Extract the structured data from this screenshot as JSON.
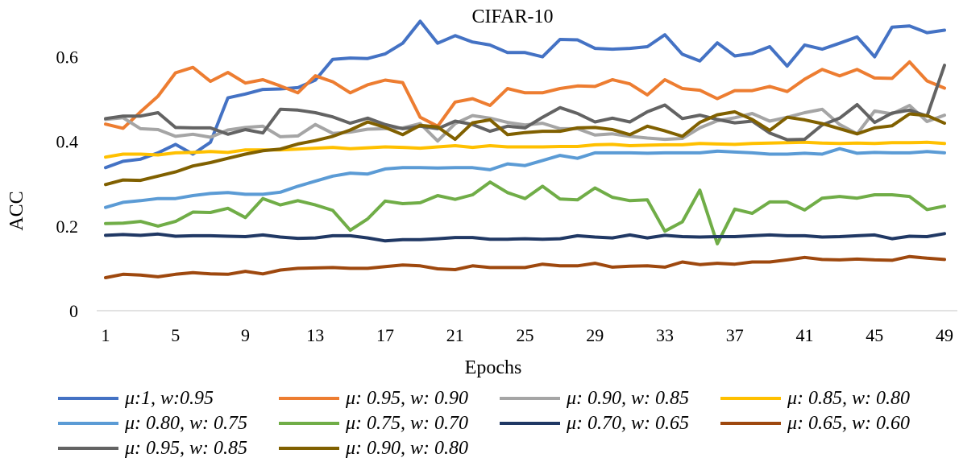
{
  "chart_data": {
    "type": "line",
    "title": "CIFAR-10",
    "xlabel": "Epochs",
    "ylabel": "ACC",
    "ylim": [
      0,
      0.7
    ],
    "yticks": [
      0,
      0.2,
      0.4,
      0.6
    ],
    "ytick_labels": [
      "0",
      "0.2",
      "0.4",
      "0.6"
    ],
    "xlim": [
      1,
      49
    ],
    "xticks": [
      1,
      5,
      9,
      13,
      17,
      21,
      25,
      29,
      33,
      37,
      41,
      45,
      49
    ],
    "xtick_labels": [
      "1",
      "5",
      "9",
      "13",
      "17",
      "21",
      "25",
      "29",
      "33",
      "37",
      "41",
      "45",
      "49"
    ],
    "legend_position": "bottom",
    "series": [
      {
        "name": "μ:1, w:0.95",
        "color": "#4472C4",
        "values": [
          0.338,
          0.353,
          0.358,
          0.373,
          0.393,
          0.37,
          0.398,
          0.503,
          0.512,
          0.523,
          0.524,
          0.527,
          0.545,
          0.594,
          0.597,
          0.596,
          0.607,
          0.632,
          0.684,
          0.632,
          0.65,
          0.635,
          0.628,
          0.61,
          0.61,
          0.6,
          0.641,
          0.64,
          0.62,
          0.618,
          0.62,
          0.624,
          0.652,
          0.606,
          0.59,
          0.633,
          0.602,
          0.608,
          0.624,
          0.578,
          0.628,
          0.618,
          0.632,
          0.647,
          0.6,
          0.67,
          0.673,
          0.657,
          0.663
        ]
      },
      {
        "name": "μ: 0.95, w: 0.90",
        "color": "#ED7D31",
        "values": [
          0.441,
          0.431,
          0.47,
          0.507,
          0.562,
          0.575,
          0.542,
          0.563,
          0.538,
          0.546,
          0.531,
          0.515,
          0.555,
          0.541,
          0.515,
          0.534,
          0.545,
          0.539,
          0.457,
          0.436,
          0.493,
          0.501,
          0.485,
          0.525,
          0.515,
          0.515,
          0.525,
          0.531,
          0.53,
          0.546,
          0.536,
          0.51,
          0.546,
          0.525,
          0.521,
          0.501,
          0.52,
          0.52,
          0.53,
          0.518,
          0.547,
          0.57,
          0.555,
          0.57,
          0.55,
          0.549,
          0.588,
          0.543,
          0.526
        ]
      },
      {
        "name": "μ: 0.90, w: 0.85",
        "color": "#A5A5A5",
        "values": [
          0.452,
          0.456,
          0.43,
          0.428,
          0.412,
          0.417,
          0.41,
          0.427,
          0.433,
          0.436,
          0.411,
          0.413,
          0.44,
          0.419,
          0.422,
          0.429,
          0.43,
          0.432,
          0.442,
          0.401,
          0.442,
          0.461,
          0.455,
          0.445,
          0.439,
          0.443,
          0.43,
          0.43,
          0.415,
          0.418,
          0.412,
          0.408,
          0.405,
          0.407,
          0.432,
          0.449,
          0.456,
          0.466,
          0.448,
          0.457,
          0.468,
          0.476,
          0.44,
          0.418,
          0.472,
          0.465,
          0.485,
          0.447,
          0.462
        ]
      },
      {
        "name": "μ: 0.85, w: 0.80",
        "color": "#FFC000",
        "values": [
          0.363,
          0.37,
          0.37,
          0.368,
          0.373,
          0.374,
          0.376,
          0.374,
          0.38,
          0.38,
          0.38,
          0.382,
          0.384,
          0.386,
          0.383,
          0.385,
          0.387,
          0.386,
          0.384,
          0.387,
          0.39,
          0.386,
          0.39,
          0.387,
          0.387,
          0.387,
          0.388,
          0.388,
          0.392,
          0.393,
          0.39,
          0.391,
          0.392,
          0.392,
          0.395,
          0.394,
          0.393,
          0.395,
          0.396,
          0.397,
          0.398,
          0.396,
          0.395,
          0.396,
          0.395,
          0.397,
          0.397,
          0.398,
          0.395
        ]
      },
      {
        "name": "μ: 0.80, w: 0.75",
        "color": "#5B9BD5",
        "values": [
          0.244,
          0.256,
          0.26,
          0.265,
          0.265,
          0.272,
          0.277,
          0.279,
          0.275,
          0.275,
          0.28,
          0.294,
          0.306,
          0.318,
          0.325,
          0.323,
          0.335,
          0.338,
          0.338,
          0.337,
          0.338,
          0.338,
          0.333,
          0.347,
          0.343,
          0.355,
          0.367,
          0.36,
          0.373,
          0.373,
          0.373,
          0.372,
          0.373,
          0.373,
          0.373,
          0.377,
          0.375,
          0.373,
          0.37,
          0.37,
          0.372,
          0.37,
          0.383,
          0.372,
          0.374,
          0.373,
          0.373,
          0.376,
          0.373
        ]
      },
      {
        "name": "μ: 0.75, w: 0.70",
        "color": "#70AD47",
        "values": [
          0.206,
          0.207,
          0.211,
          0.2,
          0.211,
          0.233,
          0.232,
          0.242,
          0.22,
          0.265,
          0.25,
          0.26,
          0.25,
          0.237,
          0.19,
          0.217,
          0.259,
          0.253,
          0.255,
          0.272,
          0.263,
          0.274,
          0.304,
          0.279,
          0.265,
          0.294,
          0.264,
          0.262,
          0.29,
          0.268,
          0.26,
          0.262,
          0.188,
          0.21,
          0.285,
          0.158,
          0.24,
          0.23,
          0.257,
          0.257,
          0.238,
          0.266,
          0.27,
          0.266,
          0.274,
          0.274,
          0.27,
          0.239,
          0.247
        ]
      },
      {
        "name": "μ: 0.70, w: 0.65",
        "color": "#203864",
        "values": [
          0.178,
          0.18,
          0.178,
          0.181,
          0.176,
          0.177,
          0.177,
          0.176,
          0.175,
          0.179,
          0.174,
          0.171,
          0.172,
          0.177,
          0.177,
          0.172,
          0.165,
          0.168,
          0.168,
          0.17,
          0.173,
          0.173,
          0.169,
          0.169,
          0.17,
          0.169,
          0.17,
          0.177,
          0.174,
          0.172,
          0.179,
          0.172,
          0.178,
          0.175,
          0.174,
          0.175,
          0.175,
          0.177,
          0.179,
          0.177,
          0.177,
          0.174,
          0.175,
          0.177,
          0.179,
          0.17,
          0.176,
          0.175,
          0.182
        ]
      },
      {
        "name": "μ: 0.65, w: 0.60",
        "color": "#9E480E",
        "values": [
          0.078,
          0.086,
          0.084,
          0.08,
          0.086,
          0.09,
          0.087,
          0.086,
          0.093,
          0.087,
          0.096,
          0.1,
          0.101,
          0.102,
          0.1,
          0.1,
          0.104,
          0.108,
          0.106,
          0.099,
          0.097,
          0.106,
          0.102,
          0.102,
          0.102,
          0.11,
          0.106,
          0.106,
          0.112,
          0.103,
          0.105,
          0.106,
          0.103,
          0.115,
          0.109,
          0.112,
          0.11,
          0.115,
          0.115,
          0.12,
          0.126,
          0.121,
          0.12,
          0.122,
          0.12,
          0.119,
          0.128,
          0.124,
          0.121
        ]
      },
      {
        "name": "μ: 0.95, w: 0.85",
        "color": "#636363",
        "values": [
          0.454,
          0.46,
          0.46,
          0.468,
          0.433,
          0.432,
          0.432,
          0.417,
          0.428,
          0.42,
          0.476,
          0.474,
          0.468,
          0.458,
          0.443,
          0.455,
          0.44,
          0.43,
          0.436,
          0.43,
          0.448,
          0.44,
          0.424,
          0.436,
          0.432,
          0.457,
          0.48,
          0.466,
          0.446,
          0.455,
          0.446,
          0.47,
          0.486,
          0.454,
          0.462,
          0.452,
          0.444,
          0.448,
          0.42,
          0.404,
          0.405,
          0.439,
          0.455,
          0.487,
          0.445,
          0.467,
          0.474,
          0.46,
          0.58
        ]
      },
      {
        "name": "μ: 0.90, w: 0.80",
        "color": "#806000",
        "values": [
          0.298,
          0.309,
          0.308,
          0.318,
          0.328,
          0.342,
          0.35,
          0.36,
          0.37,
          0.378,
          0.382,
          0.394,
          0.402,
          0.412,
          0.427,
          0.446,
          0.433,
          0.416,
          0.438,
          0.434,
          0.405,
          0.444,
          0.451,
          0.416,
          0.421,
          0.424,
          0.424,
          0.432,
          0.433,
          0.428,
          0.416,
          0.436,
          0.425,
          0.412,
          0.445,
          0.463,
          0.47,
          0.452,
          0.426,
          0.457,
          0.451,
          0.442,
          0.43,
          0.418,
          0.432,
          0.437,
          0.465,
          0.461,
          0.443
        ]
      }
    ]
  }
}
